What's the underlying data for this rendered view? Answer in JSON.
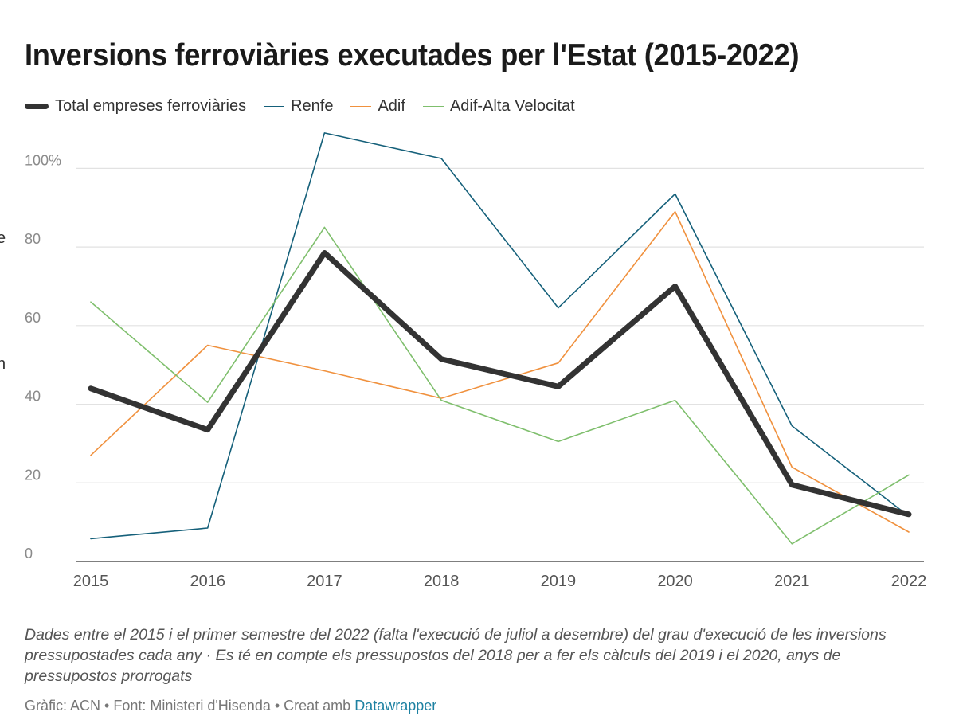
{
  "header": {
    "title": "Inversions ferroviàries executades per l'Estat (2015-2022)"
  },
  "edge_fragments": [
    "e",
    "n"
  ],
  "chart_data": {
    "type": "line",
    "title": "Inversions ferroviàries executades per l'Estat (2015-2022)",
    "x": [
      "2015",
      "2016",
      "2017",
      "2018",
      "2019",
      "2020",
      "2021",
      "2022"
    ],
    "ylim": [
      0,
      110
    ],
    "y_ticks": [
      {
        "value": 0,
        "label": "0"
      },
      {
        "value": 20,
        "label": "20"
      },
      {
        "value": 40,
        "label": "40"
      },
      {
        "value": 60,
        "label": "60"
      },
      {
        "value": 80,
        "label": "80"
      },
      {
        "value": 100,
        "label": "100%"
      }
    ],
    "grid": true,
    "legend_position": "top-left",
    "series": [
      {
        "name": "Total empreses ferroviàries",
        "color": "#333333",
        "width": 7,
        "values": [
          44,
          33.5,
          78.5,
          51.5,
          44.5,
          70,
          19.5,
          12
        ]
      },
      {
        "name": "Renfe",
        "color": "#15607a",
        "width": 1.6,
        "values": [
          5.8,
          8.5,
          109,
          102.5,
          64.5,
          93.5,
          34.5,
          11.5
        ]
      },
      {
        "name": "Adif",
        "color": "#f0913e",
        "width": 1.6,
        "values": [
          27,
          55,
          48.5,
          41.5,
          50.5,
          89,
          24,
          7.5
        ]
      },
      {
        "name": "Adif-Alta Velocitat",
        "color": "#7fbf6d",
        "width": 1.6,
        "values": [
          66,
          40.5,
          85,
          41,
          30.5,
          41,
          4.5,
          22
        ]
      }
    ]
  },
  "caption": "Dades entre el 2015 i el primer semestre del 2022 (falta l'execució de juliol a desembre) del grau d'execució de les inversions pressupostades cada any · Es té en compte els pressupostos del 2018 per a fer els càlculs del 2019 i el 2020, anys de pressupostos prorrogats",
  "footer": {
    "text": "Gràfic: ACN • Font: Ministeri d'Hisenda • Creat amb ",
    "link": "Datawrapper"
  }
}
